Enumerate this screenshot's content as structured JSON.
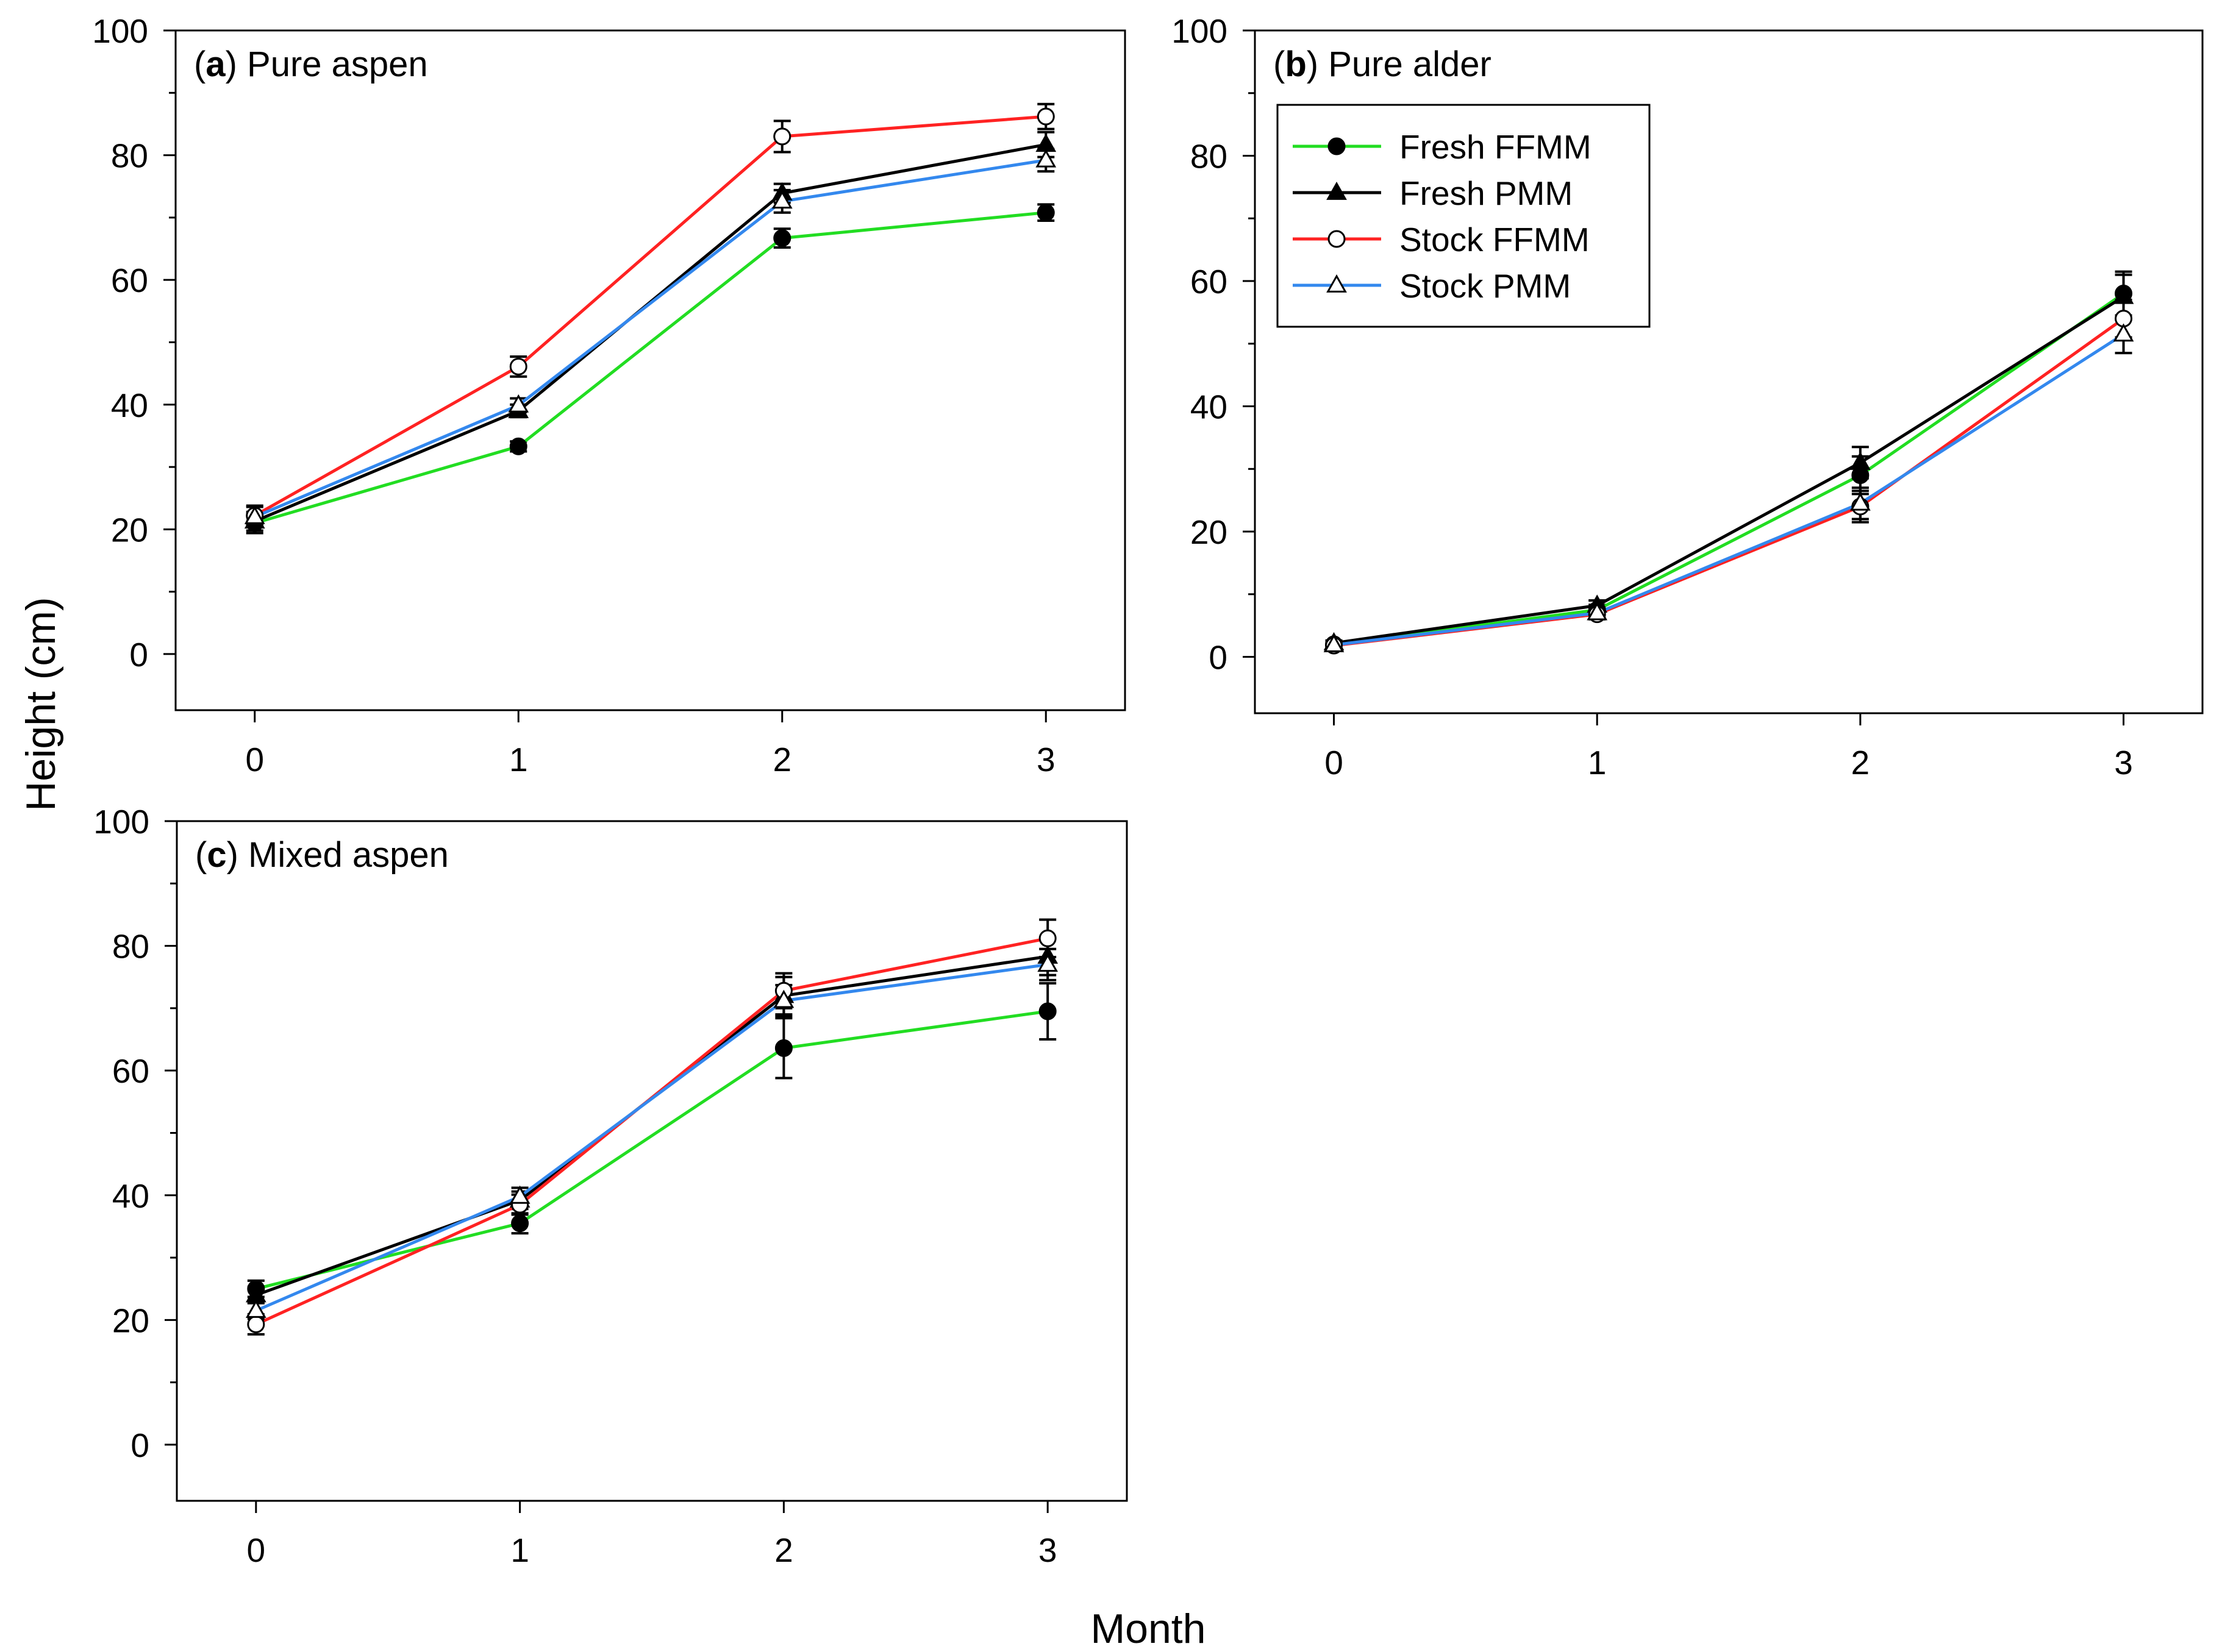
{
  "figure": {
    "ylabel": "Height (cm)",
    "xlabel": "Month"
  },
  "chart_data": [
    {
      "type": "line",
      "panel_letter": "a",
      "title_rest": ") Pure aspen",
      "x": [
        0,
        1,
        2,
        3
      ],
      "xticks": [
        "0",
        "1",
        "2",
        "3"
      ],
      "xlim": [
        -0.3,
        3.3
      ],
      "ylim": [
        -9,
        100
      ],
      "yticks": [
        "0",
        "20",
        "40",
        "60",
        "80",
        "100"
      ],
      "legend": false,
      "series": [
        {
          "name": "Fresh FFMM",
          "color": "#22dd22",
          "marker": "filled-circle",
          "values": [
            21,
            33.3,
            66.7,
            70.8
          ],
          "errors": [
            1.6,
            0.8,
            1.5,
            1.3
          ]
        },
        {
          "name": "Fresh PMM",
          "color": "#000000",
          "marker": "filled-triangle",
          "values": [
            21.3,
            39,
            73.9,
            81.7
          ],
          "errors": [
            1.5,
            1,
            1.5,
            2
          ]
        },
        {
          "name": "Stock FFMM",
          "color": "#ff2222",
          "marker": "open-circle",
          "values": [
            22.2,
            46.1,
            83,
            86.2
          ],
          "errors": [
            1.6,
            1.6,
            2.5,
            2
          ]
        },
        {
          "name": "Stock PMM",
          "color": "#3388ee",
          "marker": "open-triangle",
          "values": [
            22,
            39.9,
            72.6,
            79.2
          ],
          "errors": [
            1.6,
            1.1,
            1.8,
            1.8
          ]
        }
      ]
    },
    {
      "type": "line",
      "panel_letter": "b",
      "title_rest": ") Pure alder",
      "x": [
        0,
        1,
        2,
        3
      ],
      "xticks": [
        "0",
        "1",
        "2",
        "3"
      ],
      "xlim": [
        -0.3,
        3.3
      ],
      "ylim": [
        -9,
        100
      ],
      "yticks": [
        "0",
        "20",
        "40",
        "60",
        "80",
        "100"
      ],
      "legend": true,
      "legend_position": "top-left",
      "series": [
        {
          "name": "Fresh FFMM",
          "color": "#22dd22",
          "marker": "filled-circle",
          "values": [
            2,
            7.5,
            29,
            58
          ],
          "errors": [
            0.4,
            0.8,
            3,
            3.5
          ]
        },
        {
          "name": "Fresh PMM",
          "color": "#000000",
          "marker": "filled-triangle",
          "values": [
            2.2,
            8.2,
            31,
            57.5
          ],
          "errors": [
            0.4,
            0.8,
            2.5,
            3.5
          ]
        },
        {
          "name": "Stock FFMM",
          "color": "#ff2222",
          "marker": "open-circle",
          "values": [
            1.8,
            6.8,
            24,
            54
          ],
          "errors": [
            0.4,
            0.8,
            2.5,
            3
          ]
        },
        {
          "name": "Stock PMM",
          "color": "#3388ee",
          "marker": "open-triangle",
          "values": [
            1.9,
            7,
            24.5,
            51.5
          ],
          "errors": [
            0.4,
            0.8,
            2.5,
            3
          ]
        }
      ]
    },
    {
      "type": "line",
      "panel_letter": "c",
      "title_rest": ") Mixed aspen",
      "x": [
        0,
        1,
        2,
        3
      ],
      "xticks": [
        "0",
        "1",
        "2",
        "3"
      ],
      "xlim": [
        -0.3,
        3.3
      ],
      "ylim": [
        -9,
        100
      ],
      "yticks": [
        "0",
        "20",
        "40",
        "60",
        "80",
        "100"
      ],
      "legend": false,
      "series": [
        {
          "name": "Fresh FFMM",
          "color": "#22dd22",
          "marker": "filled-circle",
          "values": [
            25,
            35.5,
            63.6,
            69.5
          ],
          "errors": [
            1.3,
            1.6,
            4.8,
            4.5
          ]
        },
        {
          "name": "Fresh PMM",
          "color": "#000000",
          "marker": "filled-triangle",
          "values": [
            24,
            39.2,
            72,
            78.3
          ],
          "errors": [
            1.3,
            1.4,
            3,
            3
          ]
        },
        {
          "name": "Stock FFMM",
          "color": "#ff2222",
          "marker": "open-circle",
          "values": [
            19.3,
            38.5,
            72.8,
            81.2
          ],
          "errors": [
            1.6,
            1.6,
            2.8,
            3
          ]
        },
        {
          "name": "Stock PMM",
          "color": "#3388ee",
          "marker": "open-triangle",
          "values": [
            21.5,
            39.8,
            71.2,
            77
          ],
          "errors": [
            1.3,
            1.4,
            2.5,
            2.5
          ]
        }
      ]
    }
  ]
}
